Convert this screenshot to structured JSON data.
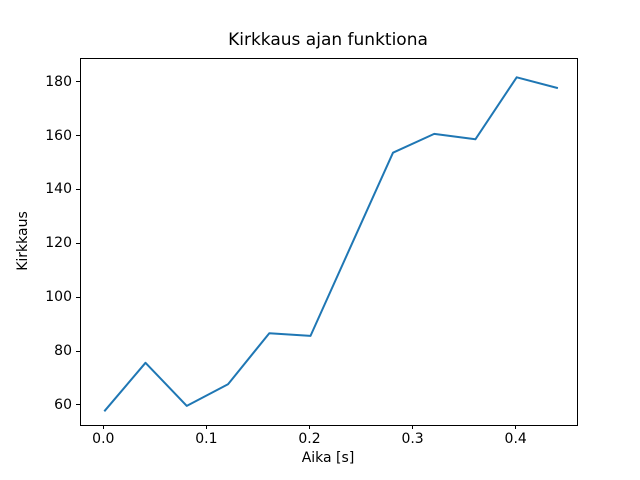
{
  "figure": {
    "background": "#ffffff",
    "spine_color": "#000000",
    "text_color": "#000000"
  },
  "chart_data": {
    "type": "line",
    "title": "Kirkkaus ajan funktiona",
    "xlabel": "Aika [s]",
    "ylabel": "Kirkkaus",
    "x": [
      0.0,
      0.04,
      0.08,
      0.12,
      0.16,
      0.2,
      0.24,
      0.28,
      0.32,
      0.36,
      0.4,
      0.44
    ],
    "y": [
      58,
      76,
      60,
      68,
      87,
      86,
      120,
      154,
      161,
      159,
      182,
      178
    ],
    "xticks": {
      "values": [
        0.0,
        0.1,
        0.2,
        0.3,
        0.4
      ],
      "labels": [
        "0.0",
        "0.1",
        "0.2",
        "0.3",
        "0.4"
      ]
    },
    "yticks": {
      "values": [
        60,
        80,
        100,
        120,
        140,
        160,
        180
      ],
      "labels": [
        "60",
        "80",
        "100",
        "120",
        "140",
        "160",
        "180"
      ]
    },
    "xlim": [
      -0.0226,
      0.4585
    ],
    "ylim": [
      52.9,
      188.8
    ],
    "grid": false,
    "legend": null,
    "line_color": "#1f77b4",
    "line_width": 2
  }
}
